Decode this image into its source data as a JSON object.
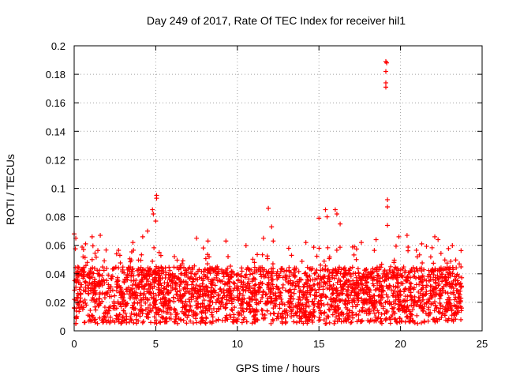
{
  "chart_data": {
    "type": "scatter",
    "title": "Day 249 of 2017, Rate Of TEC Index for receiver hil1",
    "xlabel": "GPS time / hours",
    "ylabel": "ROTI / TECUs",
    "xlim": [
      0,
      25
    ],
    "ylim": [
      0,
      0.2
    ],
    "xticks": [
      0,
      5,
      10,
      15,
      20,
      25
    ],
    "xtick_labels": [
      "0",
      "5",
      "10",
      "15",
      "20",
      "25"
    ],
    "yticks": [
      0,
      0.02,
      0.04,
      0.06,
      0.08,
      0.1,
      0.12,
      0.14,
      0.16,
      0.18,
      0.2
    ],
    "ytick_labels": [
      "0",
      "0.02",
      "0.04",
      "0.06",
      "0.08",
      "0.1",
      "0.12",
      "0.14",
      "0.16",
      "0.18",
      "0.2"
    ],
    "grid": true,
    "marker": "+",
    "color": "#ff0000",
    "series": [
      {
        "name": "ROTI",
        "x_range": [
          0,
          23.75
        ],
        "dense_band": [
          0.005,
          0.045
        ],
        "notable_points": [
          {
            "x": 0.0,
            "y": 0.068
          },
          {
            "x": 0.1,
            "y": 0.065
          },
          {
            "x": 0.7,
            "y": 0.061
          },
          {
            "x": 1.1,
            "y": 0.066
          },
          {
            "x": 1.6,
            "y": 0.067
          },
          {
            "x": 2.6,
            "y": 0.054
          },
          {
            "x": 3.6,
            "y": 0.062
          },
          {
            "x": 4.2,
            "y": 0.066
          },
          {
            "x": 4.5,
            "y": 0.07
          },
          {
            "x": 4.8,
            "y": 0.085
          },
          {
            "x": 4.85,
            "y": 0.082
          },
          {
            "x": 5.0,
            "y": 0.077
          },
          {
            "x": 5.05,
            "y": 0.095
          },
          {
            "x": 5.05,
            "y": 0.093
          },
          {
            "x": 7.5,
            "y": 0.065
          },
          {
            "x": 8.2,
            "y": 0.063
          },
          {
            "x": 9.3,
            "y": 0.063
          },
          {
            "x": 11.6,
            "y": 0.065
          },
          {
            "x": 11.9,
            "y": 0.086
          },
          {
            "x": 12.1,
            "y": 0.073
          },
          {
            "x": 12.2,
            "y": 0.063
          },
          {
            "x": 14.2,
            "y": 0.062
          },
          {
            "x": 15.0,
            "y": 0.079
          },
          {
            "x": 15.4,
            "y": 0.085
          },
          {
            "x": 15.5,
            "y": 0.08
          },
          {
            "x": 16.0,
            "y": 0.085
          },
          {
            "x": 16.1,
            "y": 0.082
          },
          {
            "x": 16.3,
            "y": 0.075
          },
          {
            "x": 17.6,
            "y": 0.062
          },
          {
            "x": 18.5,
            "y": 0.064
          },
          {
            "x": 19.1,
            "y": 0.189
          },
          {
            "x": 19.15,
            "y": 0.188
          },
          {
            "x": 19.1,
            "y": 0.182
          },
          {
            "x": 19.1,
            "y": 0.174
          },
          {
            "x": 19.1,
            "y": 0.171
          },
          {
            "x": 19.2,
            "y": 0.092
          },
          {
            "x": 19.2,
            "y": 0.087
          },
          {
            "x": 19.2,
            "y": 0.074
          },
          {
            "x": 19.9,
            "y": 0.066
          },
          {
            "x": 20.4,
            "y": 0.067
          },
          {
            "x": 21.3,
            "y": 0.061
          },
          {
            "x": 22.1,
            "y": 0.066
          },
          {
            "x": 22.3,
            "y": 0.064
          },
          {
            "x": 23.6,
            "y": 0.047
          }
        ]
      }
    ]
  }
}
